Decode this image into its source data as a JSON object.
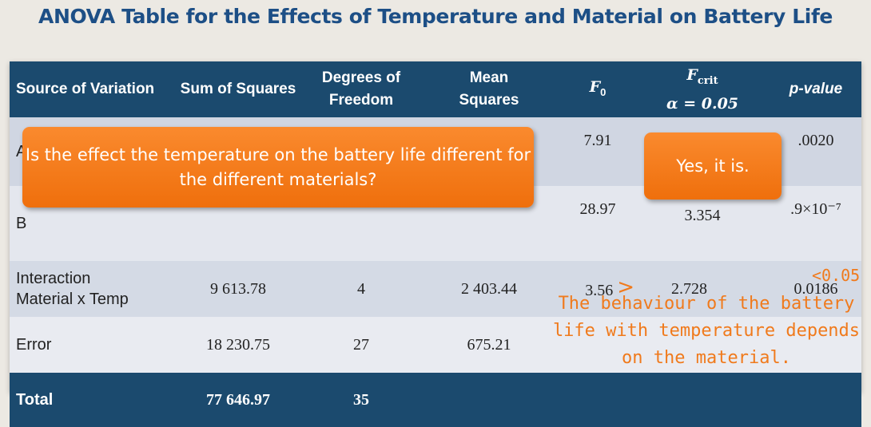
{
  "title": "ANOVA Table for the Effects of Temperature and Material on Battery Life",
  "headers": {
    "source": "Source of Variation",
    "ss": "Sum of Squares",
    "df_line1": "Degrees of",
    "df_line2": "Freedom",
    "ms_line1": "Mean",
    "ms_line2": "Squares",
    "f0_main": "F",
    "f0_sub": "0",
    "fcrit_main": "F",
    "fcrit_sub": "crit",
    "fcrit_alpha": "α = 0.05",
    "p": "p-value"
  },
  "rows": [
    {
      "source_1": "A",
      "source_2": "",
      "ss": "",
      "df": "",
      "ms": "",
      "f0": "7.91",
      "fcrit": "",
      "p": ".0020"
    },
    {
      "source_1": "B",
      "source_2": "",
      "ss": "",
      "df": "",
      "ms": "",
      "f0": "28.97",
      "fcrit": "3.354",
      "p": ".9×10⁻⁷"
    },
    {
      "source_1": "Interaction",
      "source_2": "Material x Temp",
      "ss": "9 613.78",
      "df": "4",
      "ms": "2 403.44",
      "f0": "3.56",
      "comparison": ">",
      "fcrit": "2.728",
      "p": "0.0186"
    },
    {
      "source_1": "Error",
      "source_2": "",
      "ss": "18 230.75",
      "df": "27",
      "ms": "675.21",
      "f0": "",
      "fcrit": "",
      "p": ""
    }
  ],
  "total": {
    "source": "Total",
    "ss": "77 646.97",
    "df": "35"
  },
  "callouts": {
    "question": "Is the effect the temperature on the battery life different for the different materials?",
    "answer": "Yes, it is."
  },
  "annotations": {
    "p_compare": "<0.05",
    "conclusion": "The behaviour of the battery life with temperature depends on the material."
  },
  "colors": {
    "header_bg": "#1b4a6e",
    "title": "#1d4f86",
    "accent_orange": "#f07a1c"
  }
}
